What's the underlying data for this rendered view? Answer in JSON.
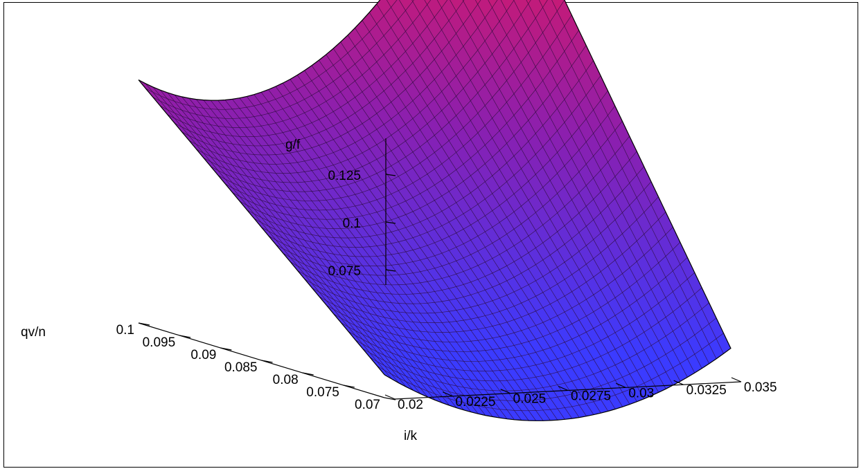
{
  "chart_data": {
    "type": "surface3d",
    "axes": {
      "x": {
        "label": "i/k",
        "ticks": [
          "0.02",
          "0.0225",
          "0.025",
          "0.0275",
          "0.03",
          "0.0325",
          "0.035"
        ],
        "range": [
          0.02,
          0.035
        ]
      },
      "y": {
        "label": "qv/n",
        "ticks": [
          "0.07",
          "0.075",
          "0.08",
          "0.085",
          "0.09",
          "0.095",
          "0.1"
        ],
        "range": [
          0.07,
          0.1
        ]
      },
      "z": {
        "label": "g/f",
        "ticks": [
          "0.075",
          "0.1",
          "0.125"
        ],
        "range": [
          0.045,
          0.14
        ]
      }
    },
    "surface": {
      "corners": {
        "x_min_y_min": 0.05,
        "x_min_y_max": 0.098,
        "x_max_y_max": 0.138,
        "x_max_y_min": 0.052
      },
      "colormap": {
        "low": "#3b3bff",
        "mid": "#8a1fb0",
        "high": "#e0185e"
      }
    },
    "grid": false
  }
}
